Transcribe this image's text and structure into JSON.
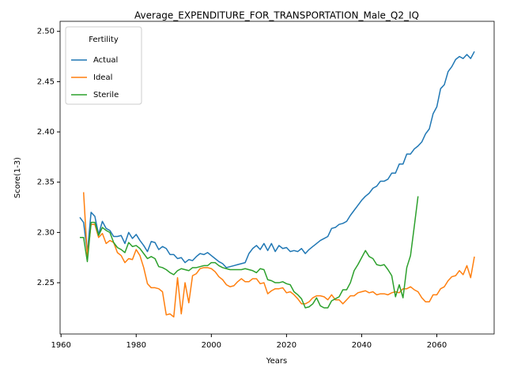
{
  "chart_data": {
    "type": "line",
    "title": "Average_EXPENDITURE_FOR_TRANSPORTATION_Male_Q2_IQ",
    "xlabel": "Years",
    "ylabel": "Score(1-3)",
    "legend_title": "Fertility",
    "legend": "upper left",
    "x": [
      1965,
      1966,
      1967,
      1968,
      1969,
      1970,
      1971,
      1972,
      1973,
      1974,
      1975,
      1976,
      1977,
      1978,
      1979,
      1980,
      1981,
      1982,
      1983,
      1984,
      1985,
      1986,
      1987,
      1988,
      1989,
      1990,
      1991,
      1992,
      1993,
      1994,
      1995,
      1996,
      1997,
      1998,
      1999,
      2000,
      2001,
      2002,
      2003,
      2004,
      2005,
      2006,
      2007,
      2008,
      2009,
      2010,
      2011,
      2012,
      2013,
      2014,
      2015,
      2016,
      2017,
      2018,
      2019,
      2020,
      2021,
      2022,
      2023,
      2024,
      2025,
      2026,
      2027,
      2028,
      2029,
      2030,
      2031,
      2032,
      2033,
      2034,
      2035,
      2036,
      2037,
      2038,
      2039,
      2040,
      2041,
      2042,
      2043,
      2044,
      2045,
      2046,
      2047,
      2048,
      2049,
      2050,
      2051,
      2052,
      2053,
      2054,
      2055,
      2056,
      2057,
      2058,
      2059,
      2060,
      2061,
      2062,
      2063,
      2064,
      2065,
      2066,
      2067,
      2068,
      2069,
      2070
    ],
    "series": [
      {
        "name": "Actual",
        "color": "#1f77b4",
        "values": [
          2.315,
          2.31,
          2.28,
          2.32,
          2.316,
          2.298,
          2.311,
          2.304,
          2.302,
          2.296,
          2.296,
          2.297,
          2.289,
          2.3,
          2.294,
          2.298,
          2.292,
          2.287,
          2.281,
          2.291,
          2.29,
          2.283,
          2.286,
          2.284,
          2.278,
          2.278,
          2.274,
          2.275,
          2.27,
          2.273,
          2.272,
          2.276,
          2.279,
          2.278,
          2.28,
          2.277,
          2.274,
          2.271,
          2.269,
          2.265,
          2.266,
          2.267,
          2.268,
          2.269,
          2.27,
          2.279,
          2.284,
          2.287,
          2.283,
          2.289,
          2.282,
          2.289,
          2.281,
          2.287,
          2.284,
          2.285,
          2.281,
          2.282,
          2.281,
          2.284,
          2.279,
          2.283,
          2.286,
          2.289,
          2.292,
          2.294,
          2.296,
          2.304,
          2.305,
          2.308,
          2.309,
          2.311,
          2.317,
          2.322,
          2.327,
          2.332,
          2.336,
          2.339,
          2.344,
          2.346,
          2.351,
          2.351,
          2.353,
          2.359,
          2.359,
          2.368,
          2.368,
          2.378,
          2.378,
          2.383,
          2.386,
          2.39,
          2.398,
          2.403,
          2.418,
          2.425,
          2.443,
          2.447,
          2.46,
          2.465,
          2.472,
          2.475,
          2.473,
          2.477,
          2.473,
          2.48
        ]
      },
      {
        "name": "Ideal",
        "color": "#ff7f0e",
        "values": [
          null,
          2.34,
          2.276,
          2.308,
          2.308,
          2.295,
          2.299,
          2.289,
          2.292,
          2.29,
          2.28,
          2.277,
          2.27,
          2.274,
          2.273,
          2.283,
          2.277,
          2.265,
          2.249,
          2.245,
          2.245,
          2.244,
          2.241,
          2.218,
          2.219,
          2.216,
          2.255,
          2.219,
          2.25,
          2.23,
          2.257,
          2.259,
          2.264,
          2.265,
          2.265,
          2.264,
          2.261,
          2.256,
          2.253,
          2.248,
          2.246,
          2.247,
          2.251,
          2.254,
          2.251,
          2.251,
          2.254,
          2.254,
          2.249,
          2.25,
          2.239,
          2.242,
          2.244,
          2.244,
          2.245,
          2.24,
          2.241,
          2.238,
          2.234,
          2.229,
          2.229,
          2.231,
          2.235,
          2.237,
          2.237,
          2.236,
          2.233,
          2.238,
          2.233,
          2.233,
          2.229,
          2.233,
          2.237,
          2.237,
          2.24,
          2.241,
          2.242,
          2.24,
          2.241,
          2.238,
          2.239,
          2.239,
          2.238,
          2.24,
          2.241,
          2.24,
          2.244,
          2.244,
          2.246,
          2.243,
          2.241,
          2.235,
          2.231,
          2.231,
          2.238,
          2.238,
          2.244,
          2.246,
          2.252,
          2.256,
          2.257,
          2.262,
          2.258,
          2.267,
          2.255,
          2.276
        ]
      },
      {
        "name": "Sterile",
        "color": "#2ca02c",
        "values": [
          2.295,
          2.295,
          2.271,
          2.31,
          2.31,
          2.297,
          2.305,
          2.302,
          2.3,
          2.29,
          2.285,
          2.283,
          2.28,
          2.29,
          2.286,
          2.287,
          2.284,
          2.279,
          2.274,
          2.276,
          2.274,
          2.266,
          2.265,
          2.263,
          2.26,
          2.258,
          2.262,
          2.264,
          2.263,
          2.262,
          2.265,
          2.265,
          2.266,
          2.267,
          2.267,
          2.27,
          2.27,
          2.267,
          2.265,
          2.264,
          2.263,
          2.263,
          2.263,
          2.263,
          2.264,
          2.263,
          2.262,
          2.26,
          2.264,
          2.263,
          2.253,
          2.252,
          2.25,
          2.25,
          2.251,
          2.249,
          2.248,
          2.241,
          2.238,
          2.234,
          2.225,
          2.226,
          2.229,
          2.235,
          2.227,
          2.225,
          2.225,
          2.232,
          2.234,
          2.236,
          2.243,
          2.243,
          2.25,
          2.262,
          2.268,
          2.275,
          2.282,
          2.276,
          2.274,
          2.268,
          2.267,
          2.268,
          2.263,
          2.257,
          2.236,
          2.248,
          2.235,
          2.265,
          2.277,
          2.306,
          2.336,
          null,
          null,
          null,
          null,
          null,
          null,
          null,
          null,
          null,
          null,
          null,
          null,
          null,
          null,
          null
        ]
      }
    ],
    "xlim": [
      1959.75,
      2075.25
    ],
    "ylim": [
      2.199,
      2.51
    ],
    "xticks": [
      1960,
      1980,
      2000,
      2020,
      2040,
      2060
    ],
    "yticks": [
      2.25,
      {
        "value": 2.3,
        "label": "2.30"
      },
      2.35,
      {
        "value": 2.4,
        "label": "2.40"
      },
      2.45,
      {
        "value": 2.5,
        "label": "2.50"
      }
    ]
  }
}
